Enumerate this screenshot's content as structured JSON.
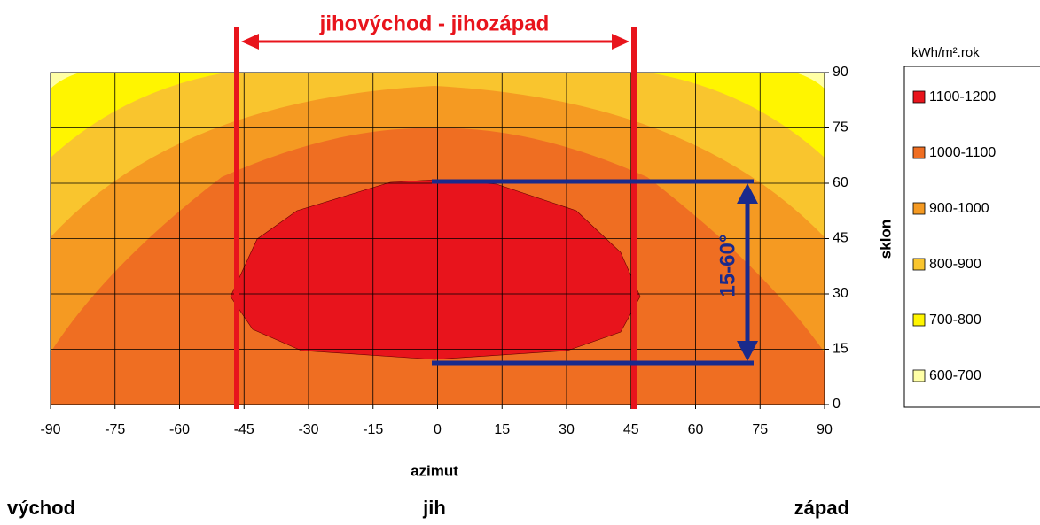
{
  "chart_data": {
    "type": "contour",
    "title": "jihovýchod - jihozápad",
    "xlabel": "azimut",
    "ylabel": "sklon",
    "xlim": [
      -90,
      90
    ],
    "ylim": [
      0,
      90
    ],
    "xticks": [
      -90,
      -75,
      -60,
      -45,
      -30,
      -15,
      0,
      15,
      30,
      45,
      60,
      75,
      90
    ],
    "yticks": [
      0,
      15,
      30,
      45,
      60,
      75,
      90
    ],
    "grid": true,
    "legend_title": "kWh/m².rok",
    "series": [
      {
        "name": "1100-1200",
        "color": "#e8141c"
      },
      {
        "name": "1000-1100",
        "color": "#ef6e22"
      },
      {
        "name": "900-1000",
        "color": "#f59a22"
      },
      {
        "name": "800-900",
        "color": "#f9c52e"
      },
      {
        "name": "700-800",
        "color": "#fff500"
      },
      {
        "name": "600-700",
        "color": "#ffffa6"
      }
    ],
    "annotations": [
      "15-60°",
      "východ",
      "jih",
      "západ"
    ]
  }
}
